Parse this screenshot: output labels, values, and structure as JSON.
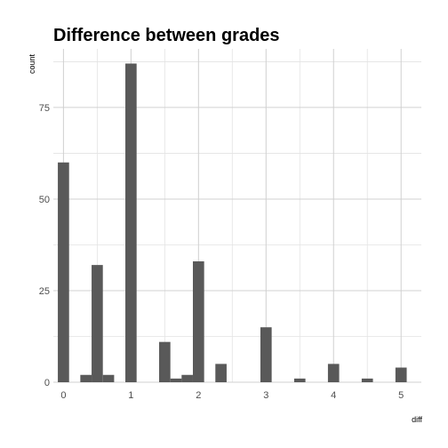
{
  "chart_data": {
    "type": "bar",
    "title": "Difference between grades",
    "xlabel": "diff",
    "ylabel": "count",
    "xlim": [
      -0.15,
      5.3
    ],
    "ylim": [
      0,
      91
    ],
    "x_ticks": [
      0,
      1,
      2,
      3,
      4,
      5
    ],
    "y_ticks": [
      0,
      25,
      50,
      75
    ],
    "grid": true,
    "bin_width": 0.1667,
    "bins": [
      {
        "x": 0.0,
        "count": 60
      },
      {
        "x": 0.333,
        "count": 2
      },
      {
        "x": 0.5,
        "count": 32
      },
      {
        "x": 0.667,
        "count": 2
      },
      {
        "x": 1.0,
        "count": 87
      },
      {
        "x": 1.5,
        "count": 11
      },
      {
        "x": 1.667,
        "count": 1
      },
      {
        "x": 1.833,
        "count": 2
      },
      {
        "x": 2.0,
        "count": 33
      },
      {
        "x": 2.333,
        "count": 5
      },
      {
        "x": 3.0,
        "count": 15
      },
      {
        "x": 3.5,
        "count": 1
      },
      {
        "x": 4.0,
        "count": 5
      },
      {
        "x": 4.5,
        "count": 1
      },
      {
        "x": 5.0,
        "count": 4
      }
    ],
    "bar_color": "#595959",
    "grid_color": "#d0d0d0"
  }
}
